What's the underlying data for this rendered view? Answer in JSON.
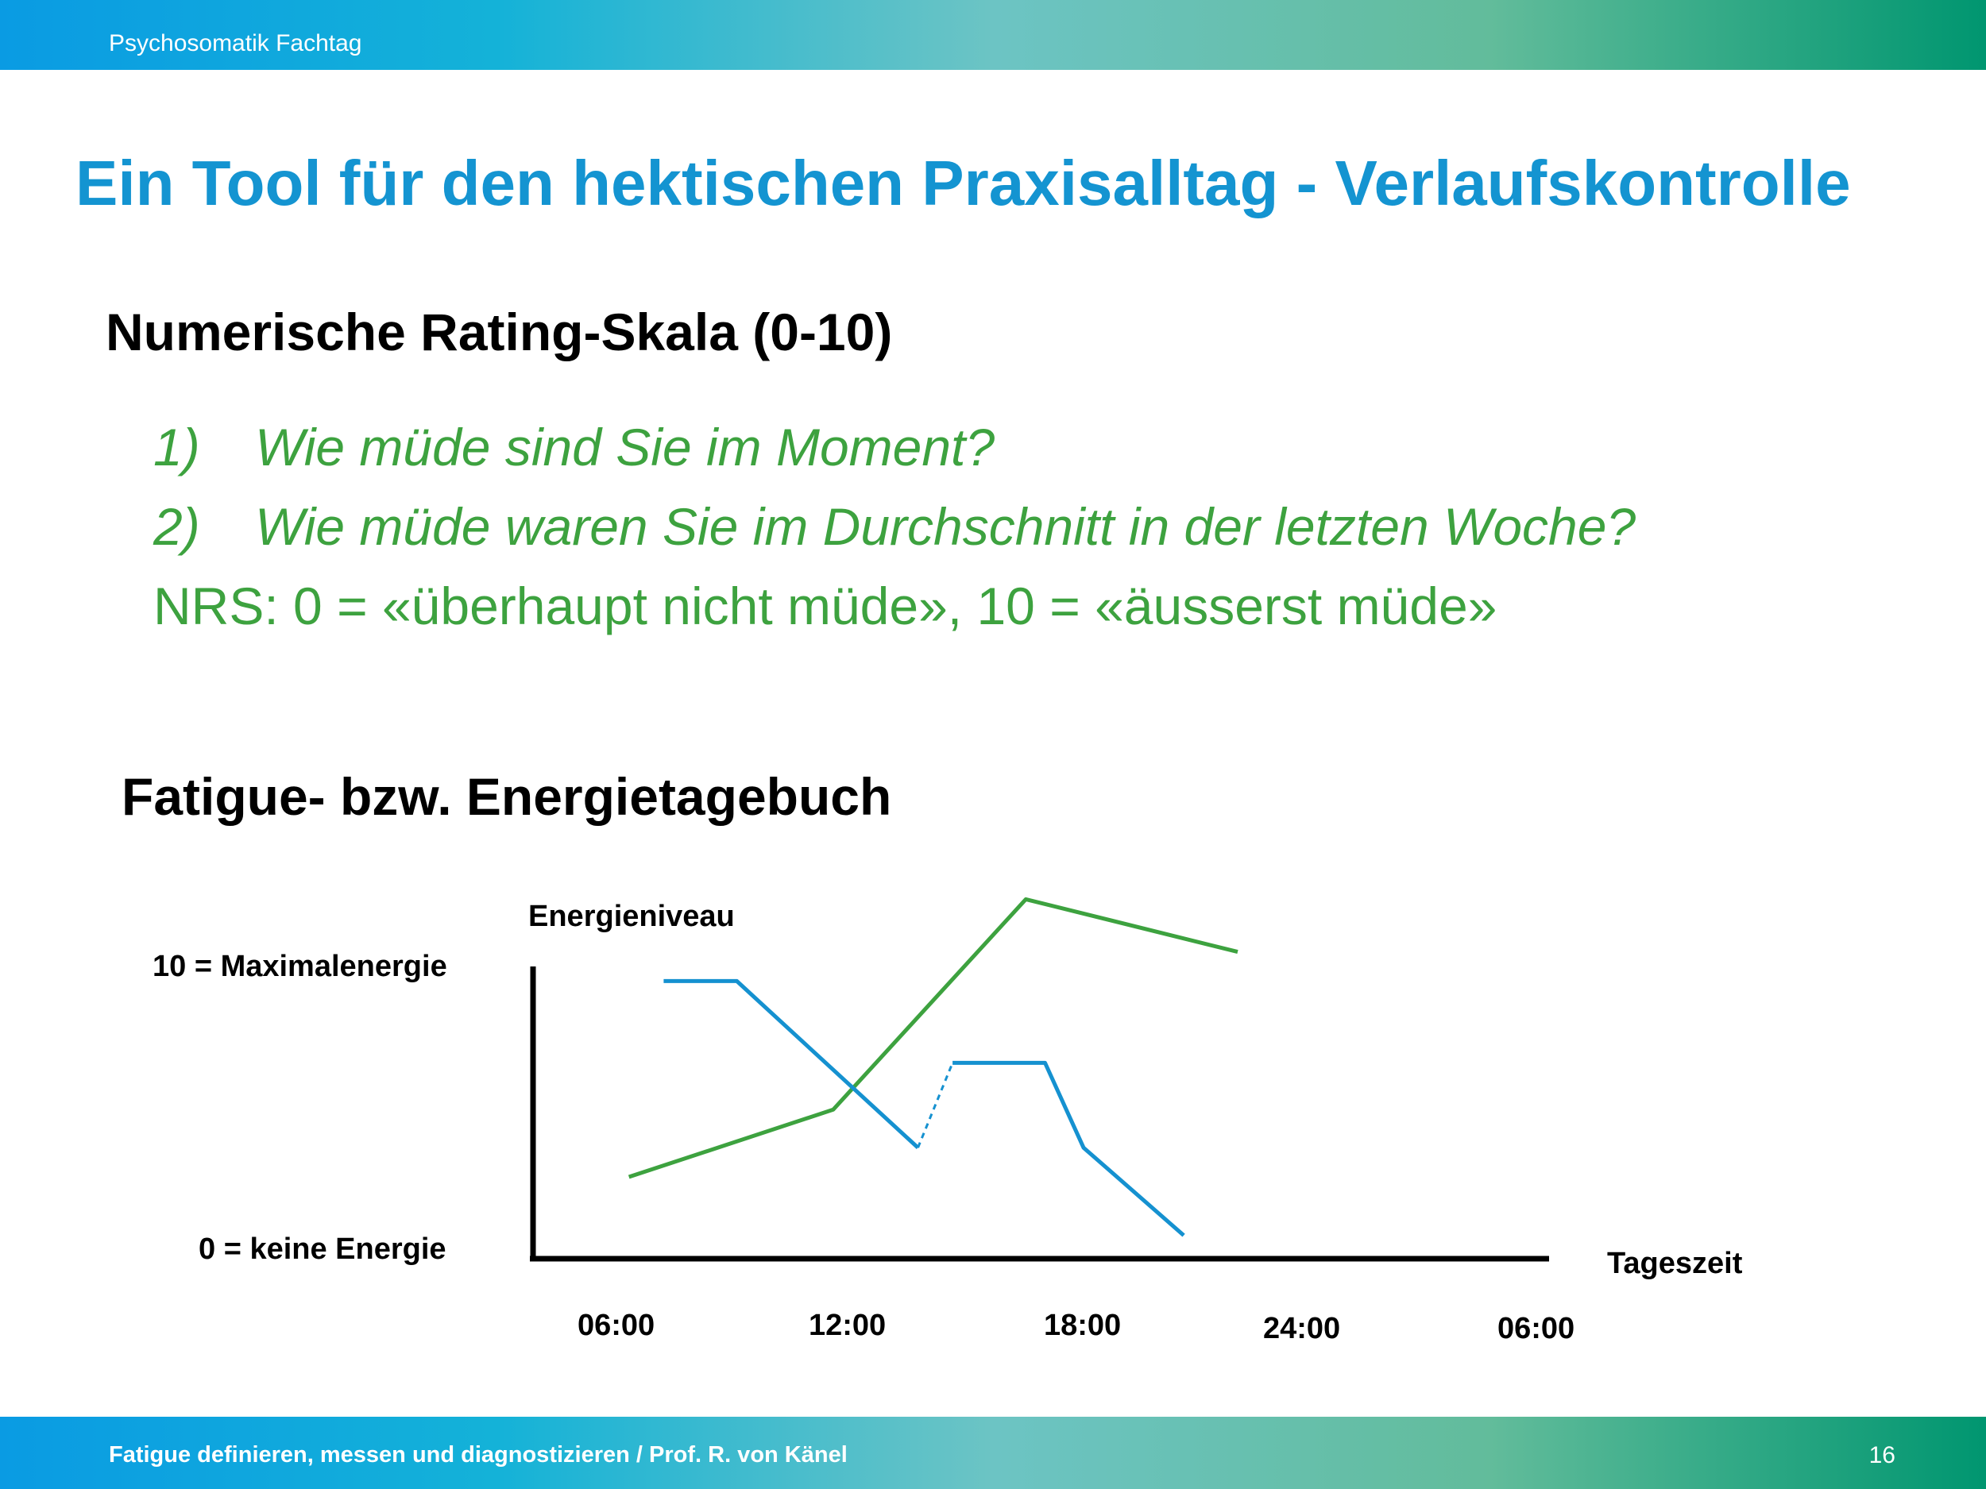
{
  "header": {
    "label": "Psychosomatik Fachtag"
  },
  "title": "Ein Tool für den hektischen Praxisalltag - Verlaufskontrolle",
  "nrs": {
    "heading": "Numerische Rating-Skala (0-10)",
    "questions": [
      {
        "num": "1)",
        "text": "Wie müde sind Sie im Moment?"
      },
      {
        "num": "2)",
        "text": "Wie müde waren Sie im Durchschnitt in der letzten Woche?"
      }
    ],
    "scale": "NRS: 0 = «überhaupt nicht müde», 10 = «äusserst müde»"
  },
  "diary": {
    "heading": "Fatigue- bzw. Energietagebuch",
    "y_label": "Energieniveau",
    "y_max_label": "10 = Maximalenergie",
    "y_min_label": "0 = keine Energie",
    "x_label": "Tageszeit"
  },
  "chart_data": {
    "type": "line",
    "xlabel": "Tageszeit",
    "ylabel": "Energieniveau",
    "x_ticks": [
      "06:00",
      "12:00",
      "18:00",
      "24:00",
      "06:00"
    ],
    "ylim": [
      0,
      10
    ],
    "grid": false,
    "series": [
      {
        "color": "#3da23f",
        "points": [
          [
            6.2,
            2.8
          ],
          [
            11.5,
            5.1
          ],
          [
            16.5,
            12.3
          ],
          [
            22.0,
            10.5
          ]
        ]
      },
      {
        "color": "#1591d0",
        "points": [
          [
            7.1,
            9.5
          ],
          [
            9.0,
            9.5
          ],
          [
            13.7,
            3.8
          ]
        ],
        "dashed_to": [
          [
            13.7,
            3.8
          ],
          [
            14.6,
            6.7
          ]
        ]
      },
      {
        "color": "#1591d0",
        "points": [
          [
            14.6,
            6.7
          ],
          [
            17.0,
            6.7
          ],
          [
            18.0,
            3.8
          ],
          [
            20.6,
            0.8
          ]
        ]
      }
    ]
  },
  "footer": {
    "text": "Fatigue definieren, messen und diagnostizieren / Prof. R. von Känel",
    "page": "16"
  }
}
